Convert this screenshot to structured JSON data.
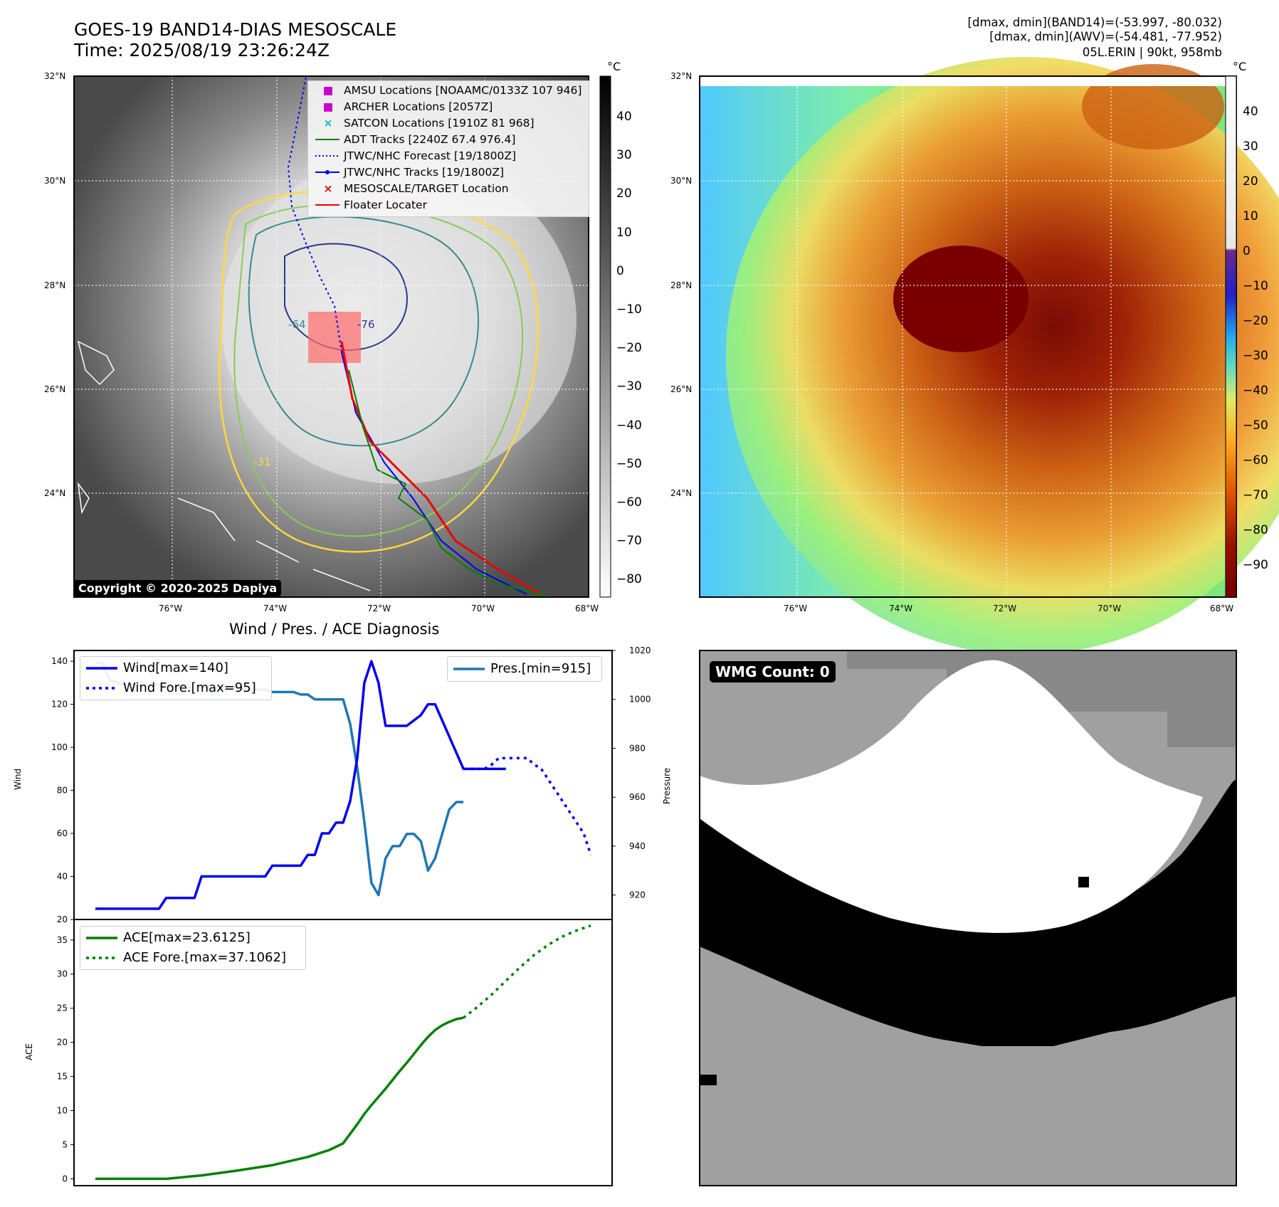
{
  "header": {
    "title_line1": "GOES-19 BAND14-DIAS MESOSCALE",
    "title_line2": "Time: 2025/08/19 23:26:24Z",
    "info_line1": "[dmax, dmin](BAND14)=(-53.997, -80.032)",
    "info_line2": "[dmax, dmin](AWV)=(-54.481, -77.952)",
    "info_line3": "05L.ERIN | 90kt, 958mb"
  },
  "map_axes": {
    "lat_labels": [
      "32°N",
      "30°N",
      "28°N",
      "26°N",
      "24°N"
    ],
    "lon_labels": [
      "76°W",
      "74°W",
      "72°W",
      "70°W",
      "68°W"
    ]
  },
  "left_map": {
    "copyright": "Copyright © 2020-2025 Dapiya",
    "contour_labels": [
      "-64",
      "-76",
      "-31"
    ],
    "colorbar": {
      "unit": "°C",
      "ticks": [
        "40",
        "30",
        "20",
        "10",
        "0",
        "−10",
        "−20",
        "−30",
        "−40",
        "−50",
        "−60",
        "−70",
        "−80"
      ]
    },
    "legend": [
      {
        "symbol": "■",
        "color": "#cc00cc",
        "label": "AMSU Locations [NOAAMC/0133Z 107 946]"
      },
      {
        "symbol": "■",
        "color": "#cc00cc",
        "label": "ARCHER Locations [2057Z]"
      },
      {
        "symbol": "×",
        "color": "#00bbbb",
        "label": "SATCON Locations [1910Z 81 968]"
      },
      {
        "symbol": "line",
        "color": "#008000",
        "label": "ADT Tracks [2240Z 67.4 976.4]"
      },
      {
        "symbol": "dotted",
        "color": "#0000ee",
        "label": "JTWC/NHC Forecast [19/1800Z]"
      },
      {
        "symbol": "linedot",
        "color": "#0000ee",
        "label": "JTWC/NHC Tracks [19/1800Z]"
      },
      {
        "symbol": "×",
        "color": "#ee0000",
        "label": "MESOSCALE/TARGET Location"
      },
      {
        "symbol": "line",
        "color": "#ee0000",
        "label": "Floater Locater"
      }
    ]
  },
  "right_map": {
    "colorbar": {
      "unit": "°C",
      "ticks": [
        "40",
        "30",
        "20",
        "10",
        "0",
        "−10",
        "−20",
        "−30",
        "−40",
        "−50",
        "−60",
        "−70",
        "−80",
        "−90"
      ]
    }
  },
  "wmg_panel": {
    "badge": "WMG Count: 0"
  },
  "colors": {
    "wind": "#0000ee",
    "pressure": "#1f77b4",
    "ace": "#008000",
    "wmg_white": "#ffffff",
    "wmg_black": "#000000",
    "wmg_gray_dark": "#888888",
    "wmg_gray_light": "#a0a0a0"
  },
  "chart_data": [
    {
      "type": "line",
      "title": "Wind / Pres. / ACE Diagnosis",
      "ylabel": "Wind",
      "y2label": "Pressure",
      "ylim": [
        20,
        145
      ],
      "y2lim": [
        910,
        1020
      ],
      "yticks": [
        20,
        40,
        60,
        80,
        100,
        120,
        140
      ],
      "y2ticks": [
        920,
        940,
        960,
        980,
        1000,
        1020
      ],
      "legend_left": [
        "Wind[max=140]",
        "Wind Fore.[max=95]"
      ],
      "legend_right": [
        "Pres.[min=915]"
      ],
      "x": [
        0,
        1,
        2,
        3,
        4,
        5,
        6,
        7,
        8,
        9,
        10,
        11,
        12,
        13,
        14,
        15,
        16,
        17,
        18,
        19,
        20,
        21,
        22,
        23,
        24,
        25,
        26,
        27,
        28,
        29,
        30,
        31,
        32,
        33,
        34,
        35,
        36,
        37,
        38,
        39,
        40,
        41,
        42,
        43,
        44,
        45,
        46,
        47,
        48,
        49,
        50,
        51,
        52,
        53,
        54,
        55,
        56,
        57,
        58
      ],
      "series": [
        {
          "name": "Wind[max=140]",
          "style": "solid",
          "x": [
            0,
            9,
            10,
            14,
            15,
            24,
            25,
            29,
            30,
            31,
            32,
            33,
            34,
            35,
            36,
            37,
            38,
            39,
            40,
            41,
            42,
            43,
            44,
            46,
            47,
            48,
            50,
            52,
            53,
            55,
            56,
            57,
            58
          ],
          "values": [
            25,
            25,
            30,
            30,
            40,
            40,
            45,
            45,
            50,
            50,
            60,
            60,
            65,
            65,
            75,
            95,
            130,
            140,
            130,
            110,
            110,
            110,
            110,
            115,
            120,
            120,
            105,
            90,
            90,
            90,
            90,
            90,
            90
          ]
        },
        {
          "name": "Wind Fore.[max=95]",
          "style": "dotted",
          "x": [
            52,
            55,
            56,
            57,
            58,
            60,
            61,
            62,
            63,
            64,
            65,
            66,
            67,
            68,
            69,
            70
          ],
          "values": [
            90,
            90,
            92,
            95,
            95,
            95,
            95,
            92,
            90,
            85,
            80,
            75,
            70,
            65,
            60,
            50
          ]
        },
        {
          "name": "Pres.[min=915]",
          "style": "solid",
          "axis": "right",
          "x": [
            0,
            1,
            2,
            3,
            4,
            5,
            6,
            7,
            8,
            9,
            10,
            11,
            12,
            13,
            14,
            15,
            16,
            17,
            18,
            19,
            20,
            21,
            22,
            23,
            24,
            25,
            26,
            27,
            28,
            29,
            30,
            31,
            32,
            33,
            34,
            35,
            36,
            37,
            38,
            39,
            40,
            41,
            42,
            43,
            44,
            45,
            46,
            47,
            48,
            49,
            50,
            51,
            52
          ],
          "values": [
            1015,
            1015,
            1008,
            1007,
            1006,
            1006,
            1006,
            1006,
            1006,
            1006,
            1006,
            1005,
            1005,
            1005,
            1005,
            1005,
            1005,
            1004,
            1005,
            1004,
            1005,
            1004,
            1004,
            1004,
            1004,
            1003,
            1003,
            1003,
            1003,
            1002,
            1002,
            1000,
            1000,
            1000,
            1000,
            1000,
            990,
            972,
            950,
            925,
            920,
            935,
            940,
            940,
            945,
            945,
            942,
            930,
            935,
            945,
            955,
            958,
            958
          ]
        }
      ]
    },
    {
      "type": "line",
      "ylabel": "ACE",
      "ylim": [
        -1,
        38
      ],
      "yticks": [
        0,
        5,
        10,
        15,
        20,
        25,
        30,
        35
      ],
      "legend": [
        "ACE[max=23.6125]",
        "ACE Fore.[max=37.1062]"
      ],
      "series": [
        {
          "name": "ACE[max=23.6125]",
          "style": "solid",
          "x": [
            0,
            10,
            15,
            20,
            25,
            30,
            33,
            35,
            37,
            38,
            39,
            40,
            41,
            42,
            43,
            44,
            45,
            46,
            47,
            48,
            49,
            50,
            51,
            52
          ],
          "values": [
            0,
            0,
            0.5,
            1.2,
            2.0,
            3.2,
            4.2,
            5.2,
            8.0,
            9.5,
            10.8,
            12.0,
            13.2,
            14.5,
            15.8,
            17.0,
            18.3,
            19.6,
            20.8,
            21.8,
            22.5,
            23.0,
            23.4,
            23.6
          ]
        },
        {
          "name": "ACE Fore.[max=37.1062]",
          "style": "dotted",
          "x": [
            52,
            54,
            56,
            58,
            60,
            62,
            64,
            66,
            68,
            70
          ],
          "values": [
            23.6,
            25.2,
            27.0,
            29.0,
            31.0,
            32.8,
            34.3,
            35.5,
            36.4,
            37.1
          ]
        }
      ]
    }
  ]
}
